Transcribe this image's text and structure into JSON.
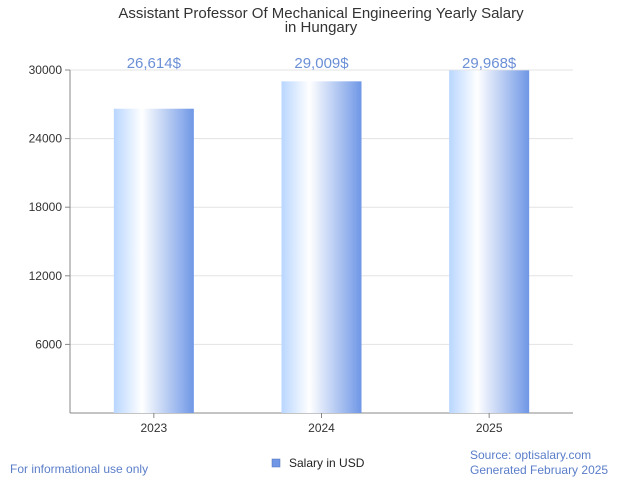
{
  "chart_data": {
    "type": "bar",
    "title_lines": [
      "Assistant Professor Of Mechanical Engineering Yearly Salary",
      "in Hungary"
    ],
    "categories": [
      "2023",
      "2024",
      "2025"
    ],
    "values": [
      26614,
      29009,
      29968
    ],
    "value_labels": [
      "26,614$",
      "29,009$",
      "29,968$"
    ],
    "yticks": [
      6000,
      12000,
      18000,
      24000,
      30000
    ],
    "ylim": [
      0,
      30000
    ],
    "xlabel": "",
    "ylabel": "",
    "grid": true,
    "legend": {
      "label": "Salary in USD",
      "position": "bottom-center"
    },
    "colors": {
      "bar_light": "#cfe3ff",
      "bar_dark": "#6f97e6",
      "label": "#6b8fd6"
    }
  },
  "footer": {
    "note": "For informational use only",
    "source": "Source: optisalary.com",
    "generated": "Generated February 2025"
  }
}
